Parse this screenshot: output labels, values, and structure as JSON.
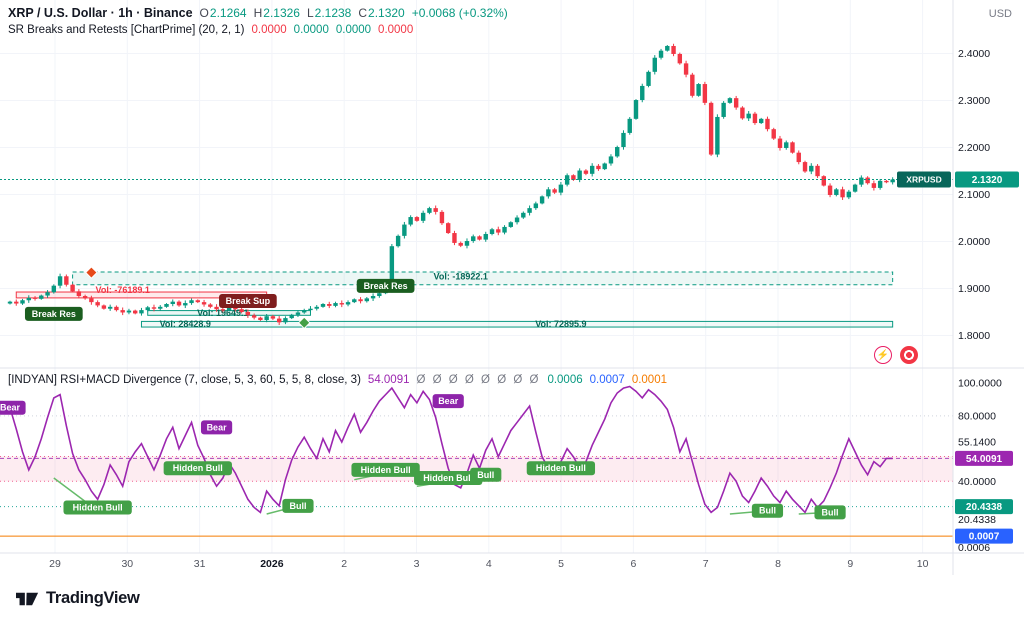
{
  "header": {
    "symbol": "XRP / U.S. Dollar · 1h · Binance",
    "ohlc": [
      {
        "label": "O",
        "value": "2.1264"
      },
      {
        "label": "H",
        "value": "2.1326"
      },
      {
        "label": "L",
        "value": "2.1238"
      },
      {
        "label": "C",
        "value": "2.1320"
      }
    ],
    "change": "+0.0068 (+0.32%)",
    "currency": "USD"
  },
  "sr_indicator": {
    "name": "SR Breaks and Retests [ChartPrime] (20, 2, 1)",
    "values": [
      "0.0000",
      "0.0000",
      "0.0000",
      "0.0000"
    ]
  },
  "rsi_indicator": {
    "name": "[INDYAN] RSI+MACD Divergence (7, close, 5, 3, 60, 5, 5, 8, close, 3)",
    "value": "54.0091",
    "nulls": "Ø Ø Ø Ø Ø Ø Ø Ø",
    "v1": "0.0006",
    "v2": "0.0007",
    "v3": "0.0001"
  },
  "footer": {
    "brand": "TradingView"
  },
  "colors": {
    "up": "#089981",
    "down": "#f23645",
    "purple": "#9c27b0",
    "blue": "#2962ff",
    "orange": "#f57c00",
    "bull_badge": "#43a047",
    "bear_badge": "#8e24aa",
    "break_res": "#1b5e20",
    "break_sup": "#7f1d1d"
  },
  "chart_data": {
    "type": "candlestick",
    "title": "XRP / U.S. Dollar 1h Binance with SR Breaks/Retests and RSI+MACD Divergence",
    "last_price": 2.132,
    "price_badge": {
      "symbol_label": "XRPUSD",
      "price_label": "2.1320"
    },
    "price_axis_ticks": [
      "2.4000",
      "2.3000",
      "2.2000",
      "2.1000",
      "2.0000",
      "1.9000",
      "1.8000"
    ],
    "time_axis": [
      "29",
      "30",
      "31",
      "2026",
      "2",
      "3",
      "4",
      "5",
      "6",
      "7",
      "8",
      "9",
      "10"
    ],
    "price_range": [
      1.78,
      2.45
    ],
    "closes": [
      1.872,
      1.868,
      1.875,
      1.88,
      1.878,
      1.885,
      1.892,
      1.906,
      1.926,
      1.908,
      1.894,
      1.884,
      1.879,
      1.871,
      1.864,
      1.857,
      1.861,
      1.854,
      1.849,
      1.853,
      1.847,
      1.854,
      1.86,
      1.857,
      1.861,
      1.867,
      1.872,
      1.864,
      1.869,
      1.875,
      1.871,
      1.866,
      1.861,
      1.856,
      1.853,
      1.859,
      1.856,
      1.85,
      1.843,
      1.838,
      1.833,
      1.841,
      1.836,
      1.828,
      1.837,
      1.844,
      1.849,
      1.854,
      1.857,
      1.861,
      1.867,
      1.863,
      1.869,
      1.866,
      1.871,
      1.877,
      1.873,
      1.879,
      1.884,
      1.89,
      1.896,
      1.99,
      2.012,
      2.036,
      2.052,
      2.044,
      2.061,
      2.071,
      2.063,
      2.039,
      2.018,
      1.997,
      1.991,
      2.001,
      2.011,
      2.004,
      2.016,
      2.026,
      2.019,
      2.031,
      2.041,
      2.051,
      2.061,
      2.071,
      2.081,
      2.096,
      2.111,
      2.104,
      2.121,
      2.141,
      2.131,
      2.151,
      2.144,
      2.161,
      2.154,
      2.166,
      2.181,
      2.201,
      2.231,
      2.261,
      2.301,
      2.331,
      2.361,
      2.391,
      2.406,
      2.416,
      2.399,
      2.379,
      2.355,
      2.31,
      2.335,
      2.295,
      2.185,
      2.265,
      2.295,
      2.305,
      2.285,
      2.262,
      2.272,
      2.252,
      2.261,
      2.239,
      2.219,
      2.199,
      2.211,
      2.189,
      2.169,
      2.149,
      2.161,
      2.139,
      2.119,
      2.099,
      2.111,
      2.094,
      2.106,
      2.121,
      2.136,
      2.124,
      2.114,
      2.129,
      2.126,
      2.132
    ],
    "zones": [
      {
        "i1": 10,
        "i2": 141,
        "p1": 1.935,
        "p2": 1.908,
        "fill": "rgba(8,153,129,0.08)",
        "stroke": "#089981",
        "dash": "4,3",
        "labels": [
          {
            "text": "Vol: -18922.1",
            "i": 72,
            "p": 1.9255,
            "color": "#056656"
          }
        ]
      },
      {
        "i1": 1,
        "i2": 41,
        "p1": 1.8925,
        "p2": 1.88,
        "fill": "rgba(242,54,69,0.10)",
        "stroke": "#f23645",
        "dash": "",
        "labels": [
          {
            "text": "Vol: -76189.1",
            "i": 18,
            "p": 1.897,
            "color": "#f23645"
          }
        ]
      },
      {
        "i1": 22,
        "i2": 48,
        "p1": 1.853,
        "p2": 1.843,
        "fill": "rgba(8,153,129,0.08)",
        "stroke": "#089981",
        "dash": "",
        "labels": [
          {
            "text": "Vol: 19649.1",
            "i": 34,
            "p": 1.848,
            "color": "#056656"
          }
        ]
      },
      {
        "i1": 21,
        "i2": 141,
        "p1": 1.83,
        "p2": 1.818,
        "fill": "rgba(8,153,129,0.06)",
        "stroke": "#089981",
        "dash": "",
        "labels": [
          {
            "text": "Vol: 28428.9",
            "i": 28,
            "p": 1.8245,
            "color": "#056656"
          },
          {
            "text": "Vol: 72895.9",
            "i": 88,
            "p": 1.8245,
            "color": "#056656"
          }
        ]
      }
    ],
    "price_markers": [
      {
        "type": "badge",
        "text": "Break Res",
        "i": 7,
        "p": 1.846,
        "bg": "#1b5e20"
      },
      {
        "type": "diamond",
        "i": 13,
        "p": 1.934,
        "color": "#e64a19"
      },
      {
        "type": "badge",
        "text": "Break Sup",
        "i": 38,
        "p": 1.8735,
        "bg": "#7f1d1d"
      },
      {
        "type": "diamond",
        "i": 47,
        "p": 1.827,
        "color": "#43a047"
      },
      {
        "type": "badge",
        "text": "Break Res",
        "i": 60,
        "p": 1.9055,
        "bg": "#1b5e20"
      }
    ],
    "rsi": {
      "last": 54.0091,
      "values": [
        85,
        72,
        58,
        47,
        55,
        66,
        79,
        91,
        93,
        74,
        57,
        47,
        41,
        34,
        29,
        38,
        50,
        44,
        37,
        52,
        58,
        63,
        55,
        47,
        56,
        66,
        73,
        60,
        68,
        76,
        62,
        54,
        44,
        37,
        42,
        51,
        45,
        37,
        29,
        24,
        21,
        34,
        29,
        25,
        41,
        53,
        61,
        67,
        60,
        54,
        66,
        58,
        71,
        64,
        73,
        81,
        70,
        76,
        83,
        89,
        93,
        97,
        91,
        85,
        93,
        88,
        95,
        90,
        79,
        63,
        48,
        38,
        36,
        45,
        56,
        48,
        59,
        66,
        55,
        63,
        71,
        76,
        81,
        86,
        70,
        55,
        48,
        45,
        52,
        60,
        55,
        48,
        52,
        62,
        70,
        78,
        88,
        94,
        97,
        98,
        95,
        91,
        96,
        93,
        89,
        84,
        73,
        58,
        66,
        52,
        38,
        26,
        21,
        24,
        34,
        45,
        40,
        31,
        27,
        34,
        42,
        37,
        31,
        27,
        34,
        29,
        25,
        21,
        29,
        24,
        28,
        36,
        45,
        56,
        66,
        58,
        50,
        44,
        52,
        49,
        54,
        54
      ],
      "band": [
        40,
        55.14
      ],
      "orange_line_v": 6.5,
      "axis_ticks": [
        {
          "t": "100.0000",
          "pv": 100
        },
        {
          "t": "80.0000",
          "pv": 80
        },
        {
          "t": "55.1400",
          "pv": 64
        },
        {
          "t": "40.0000",
          "pv": 40
        },
        {
          "t": "20.4338",
          "pv": 16.5
        },
        {
          "t": "0.0006",
          "pv": -0.5
        }
      ],
      "badges": [
        {
          "t": "54.0091",
          "pv": 54,
          "bg": "#9c27b0"
        },
        {
          "t": "20.4338",
          "pv": 24.5,
          "bg": "#089981"
        },
        {
          "t": "0.0007",
          "pv": 6.5,
          "bg": "#2962ff"
        }
      ],
      "markers": [
        {
          "text": "Bear",
          "i": 0,
          "v": 85,
          "type": "bear"
        },
        {
          "text": "Bear",
          "i": 33,
          "v": 73,
          "type": "bear"
        },
        {
          "text": "Bear",
          "i": 70,
          "v": 89,
          "type": "bear"
        },
        {
          "text": "Hidden Bull",
          "i": 14,
          "v": 24,
          "type": "bull"
        },
        {
          "text": "Hidden Bull",
          "i": 30,
          "v": 48,
          "type": "bull"
        },
        {
          "text": "Bull",
          "i": 46,
          "v": 25,
          "type": "bull"
        },
        {
          "text": "Hidden Bull",
          "i": 60,
          "v": 47,
          "type": "bull"
        },
        {
          "text": "Hidden Bull",
          "i": 70,
          "v": 42,
          "type": "bull"
        },
        {
          "text": "Bull",
          "i": 76,
          "v": 44,
          "type": "bull"
        },
        {
          "text": "Hidden Bull",
          "i": 88,
          "v": 48,
          "type": "bull"
        },
        {
          "text": "Bull",
          "i": 121,
          "v": 22,
          "type": "bull"
        },
        {
          "text": "Bull",
          "i": 131,
          "v": 21,
          "type": "bull"
        }
      ],
      "lines": [
        [
          [
            7,
            42
          ],
          [
            14,
            22
          ]
        ],
        [
          [
            41,
            20
          ],
          [
            47,
            26
          ]
        ],
        [
          [
            55,
            41
          ],
          [
            60,
            45
          ]
        ],
        [
          [
            65,
            37
          ],
          [
            70,
            40
          ]
        ],
        [
          [
            84,
            46
          ],
          [
            88,
            50
          ]
        ],
        [
          [
            115,
            20
          ],
          [
            121,
            22
          ]
        ],
        [
          [
            126,
            20
          ],
          [
            131,
            21
          ]
        ]
      ]
    }
  }
}
